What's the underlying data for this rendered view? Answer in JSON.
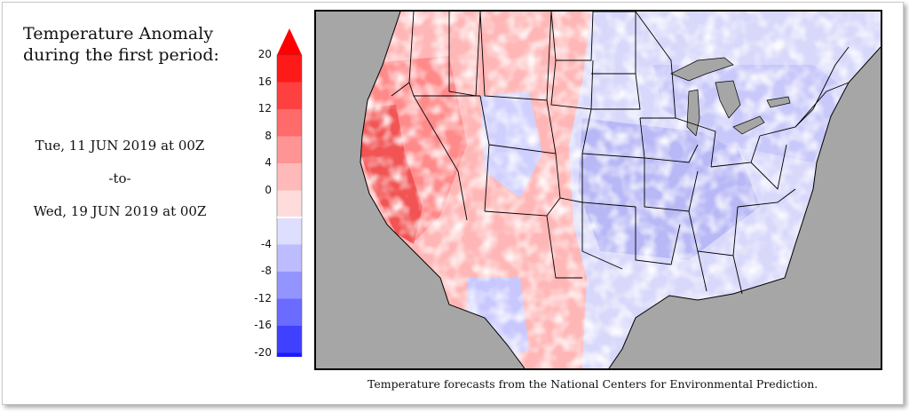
{
  "title_line1": "Temperature Anomaly",
  "title_line2": "during the first period:",
  "start": "Tue, 11 JUN 2019 at 00Z",
  "separator": "-to-",
  "end": "Wed, 19 JUN 2019 at 00Z",
  "credit": "Temperature forecasts from the National Centers for Environmental Prediction.",
  "legend": {
    "ticks": [
      "20",
      "16",
      "12",
      "8",
      "4",
      "0",
      "-4",
      "-8",
      "-12",
      "-16",
      "-20"
    ],
    "colors_warm": [
      "#ff1a1a",
      "#ff4040",
      "#ff6b6b",
      "#ff9494",
      "#ffb9b9",
      "#ffdcdc"
    ],
    "colors_cool": [
      "#dedeff",
      "#bcbcff",
      "#9494ff",
      "#6b6bff",
      "#4040ff",
      "#1a1aff"
    ]
  }
}
